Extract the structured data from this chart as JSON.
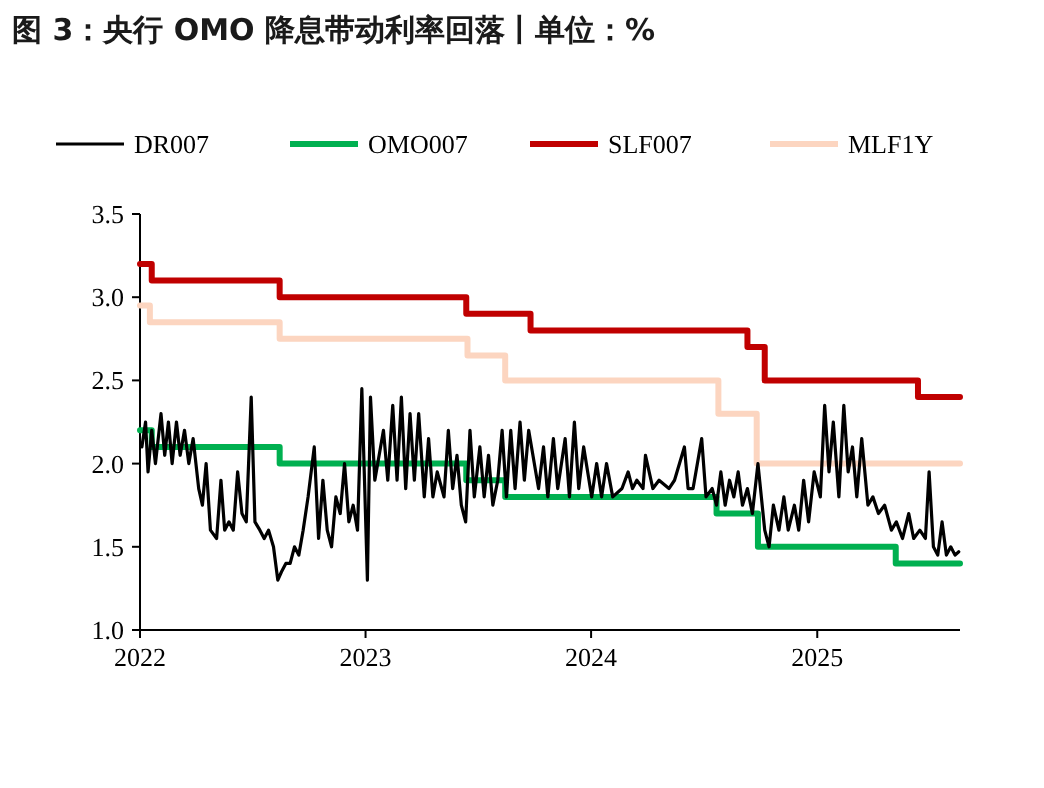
{
  "chart_data": {
    "type": "line",
    "title": "图 3：央行 OMO 降息带动利率回落丨单位：%",
    "xlim": [
      "2022-01-01",
      "2025-08-20"
    ],
    "xticks": [
      {
        "value": "2022-01-01",
        "label": "2022"
      },
      {
        "value": "2023-01-01",
        "label": "2023"
      },
      {
        "value": "2024-01-01",
        "label": "2024"
      },
      {
        "value": "2025-01-01",
        "label": "2025"
      }
    ],
    "ylim": [
      1.0,
      3.5
    ],
    "yticks": [
      {
        "value": 1,
        "label": "1.0"
      },
      {
        "value": 1.5,
        "label": "1.5"
      },
      {
        "value": 2,
        "label": "2.0"
      },
      {
        "value": 2.5,
        "label": "2.5"
      },
      {
        "value": 3,
        "label": "3.0"
      },
      {
        "value": 3.5,
        "label": "3.5"
      }
    ],
    "legend": "top",
    "grid": false,
    "marker": "none",
    "line_style": "solid",
    "series": [
      {
        "name": "DR007",
        "color": "#000000",
        "x": [
          "2022-01-04",
          "2022-01-10",
          "2022-01-14",
          "2022-01-20",
          "2022-01-26",
          "2022-02-04",
          "2022-02-10",
          "2022-02-16",
          "2022-02-22",
          "2022-03-01",
          "2022-03-07",
          "2022-03-14",
          "2022-03-21",
          "2022-03-28",
          "2022-04-06",
          "2022-04-12",
          "2022-04-18",
          "2022-04-25",
          "2022-05-05",
          "2022-05-12",
          "2022-05-18",
          "2022-05-25",
          "2022-06-01",
          "2022-06-08",
          "2022-06-15",
          "2022-06-22",
          "2022-06-30",
          "2022-07-06",
          "2022-07-14",
          "2022-07-21",
          "2022-07-28",
          "2022-08-05",
          "2022-08-12",
          "2022-08-18",
          "2022-08-25",
          "2022-09-01",
          "2022-09-08",
          "2022-09-15",
          "2022-09-22",
          "2022-09-30",
          "2022-10-10",
          "2022-10-17",
          "2022-10-24",
          "2022-10-31",
          "2022-11-07",
          "2022-11-14",
          "2022-11-21",
          "2022-11-28",
          "2022-12-05",
          "2022-12-12",
          "2022-12-19",
          "2022-12-26",
          "2023-01-04",
          "2023-01-09",
          "2023-01-16",
          "2023-01-30",
          "2023-02-06",
          "2023-02-14",
          "2023-02-21",
          "2023-02-28",
          "2023-03-07",
          "2023-03-14",
          "2023-03-21",
          "2023-03-28",
          "2023-04-06",
          "2023-04-13",
          "2023-04-20",
          "2023-04-27",
          "2023-05-08",
          "2023-05-15",
          "2023-05-22",
          "2023-05-29",
          "2023-06-05",
          "2023-06-12",
          "2023-06-19",
          "2023-06-26",
          "2023-07-05",
          "2023-07-12",
          "2023-07-19",
          "2023-07-26",
          "2023-08-03",
          "2023-08-10",
          "2023-08-17",
          "2023-08-24",
          "2023-08-31",
          "2023-09-08",
          "2023-09-15",
          "2023-09-22",
          "2023-10-08",
          "2023-10-16",
          "2023-10-23",
          "2023-11-01",
          "2023-11-08",
          "2023-11-20",
          "2023-11-27",
          "2023-12-05",
          "2023-12-12",
          "2023-12-20",
          "2024-01-02",
          "2024-01-10",
          "2024-01-18",
          "2024-01-26",
          "2024-02-05",
          "2024-02-20",
          "2024-03-01",
          "2024-03-08",
          "2024-03-15",
          "2024-03-25",
          "2024-03-29",
          "2024-04-10",
          "2024-04-20",
          "2024-05-06",
          "2024-05-15",
          "2024-05-31",
          "2024-06-06",
          "2024-06-14",
          "2024-06-28",
          "2024-07-05",
          "2024-07-15",
          "2024-07-22",
          "2024-07-29",
          "2024-08-05",
          "2024-08-12",
          "2024-08-19",
          "2024-08-26",
          "2024-09-02",
          "2024-09-10",
          "2024-09-18",
          "2024-09-27",
          "2024-10-08",
          "2024-10-15",
          "2024-10-22",
          "2024-10-31",
          "2024-11-08",
          "2024-11-15",
          "2024-11-25",
          "2024-12-02",
          "2024-12-10",
          "2024-12-18",
          "2024-12-27",
          "2025-01-06",
          "2025-01-13",
          "2025-01-20",
          "2025-01-27",
          "2025-02-05",
          "2025-02-13",
          "2025-02-20",
          "2025-02-27",
          "2025-03-06",
          "2025-03-14",
          "2025-03-24",
          "2025-04-01",
          "2025-04-10",
          "2025-04-20",
          "2025-05-01",
          "2025-05-09",
          "2025-05-19",
          "2025-05-29",
          "2025-06-06",
          "2025-06-16",
          "2025-06-25",
          "2025-07-01",
          "2025-07-08",
          "2025-07-15",
          "2025-07-22",
          "2025-07-29",
          "2025-08-05",
          "2025-08-12",
          "2025-08-18"
        ],
        "values": [
          2.1,
          2.25,
          1.95,
          2.2,
          2.0,
          2.3,
          2.05,
          2.25,
          2.0,
          2.25,
          2.05,
          2.2,
          2.0,
          2.15,
          1.85,
          1.75,
          2.0,
          1.6,
          1.55,
          1.9,
          1.6,
          1.65,
          1.6,
          1.95,
          1.7,
          1.65,
          2.4,
          1.65,
          1.6,
          1.55,
          1.6,
          1.5,
          1.3,
          1.35,
          1.4,
          1.4,
          1.5,
          1.45,
          1.6,
          1.8,
          2.1,
          1.55,
          1.9,
          1.6,
          1.5,
          1.8,
          1.7,
          2.0,
          1.65,
          1.75,
          1.6,
          2.45,
          1.3,
          2.4,
          1.9,
          2.2,
          1.9,
          2.35,
          1.9,
          2.4,
          1.85,
          2.3,
          1.9,
          2.3,
          1.8,
          2.15,
          1.8,
          1.95,
          1.8,
          2.2,
          1.85,
          2.05,
          1.75,
          1.65,
          2.2,
          1.8,
          2.1,
          1.8,
          2.05,
          1.75,
          1.9,
          2.2,
          1.8,
          2.2,
          1.85,
          2.25,
          1.9,
          2.2,
          1.85,
          2.1,
          1.8,
          2.15,
          1.85,
          2.15,
          1.8,
          2.25,
          1.85,
          2.1,
          1.8,
          2.0,
          1.8,
          2.0,
          1.8,
          1.85,
          1.95,
          1.85,
          1.9,
          1.85,
          2.05,
          1.85,
          1.9,
          1.85,
          1.9,
          2.1,
          1.85,
          1.85,
          2.15,
          1.8,
          1.85,
          1.75,
          1.95,
          1.75,
          1.9,
          1.8,
          1.95,
          1.75,
          1.85,
          1.7,
          2.0,
          1.6,
          1.5,
          1.75,
          1.6,
          1.8,
          1.6,
          1.75,
          1.6,
          1.9,
          1.65,
          1.95,
          1.8,
          2.35,
          1.95,
          2.25,
          1.8,
          2.35,
          1.95,
          2.1,
          1.8,
          2.15,
          1.75,
          1.8,
          1.7,
          1.75,
          1.6,
          1.65,
          1.55,
          1.7,
          1.55,
          1.6,
          1.55,
          1.95,
          1.5,
          1.45,
          1.65,
          1.45,
          1.5,
          1.45,
          1.47
        ]
      },
      {
        "name": "OMO007",
        "type": "step",
        "color": "#00b050",
        "x": [
          "2022-01-01",
          "2022-01-20",
          "2022-08-15",
          "2023-06-13",
          "2023-08-15",
          "2024-07-22",
          "2024-09-27",
          "2025-05-08",
          "2025-08-20"
        ],
        "values": [
          2.2,
          2.1,
          2.0,
          1.9,
          1.8,
          1.7,
          1.5,
          1.4,
          1.4
        ]
      },
      {
        "name": "SLF007",
        "type": "step",
        "color": "#c00000",
        "x": [
          "2022-01-01",
          "2022-01-20",
          "2022-08-15",
          "2023-06-13",
          "2023-09-25",
          "2024-09-10",
          "2024-10-08",
          "2025-06-13",
          "2025-08-20"
        ],
        "values": [
          3.2,
          3.1,
          3.0,
          2.9,
          2.8,
          2.7,
          2.5,
          2.4,
          2.4
        ]
      },
      {
        "name": "MLF1Y",
        "type": "step",
        "color": "#fcd5c0",
        "x": [
          "2022-01-01",
          "2022-01-17",
          "2022-08-15",
          "2023-06-15",
          "2023-08-15",
          "2024-07-25",
          "2024-09-25",
          "2025-08-20"
        ],
        "values": [
          2.95,
          2.85,
          2.75,
          2.65,
          2.5,
          2.3,
          2.0,
          2.0
        ]
      }
    ]
  }
}
